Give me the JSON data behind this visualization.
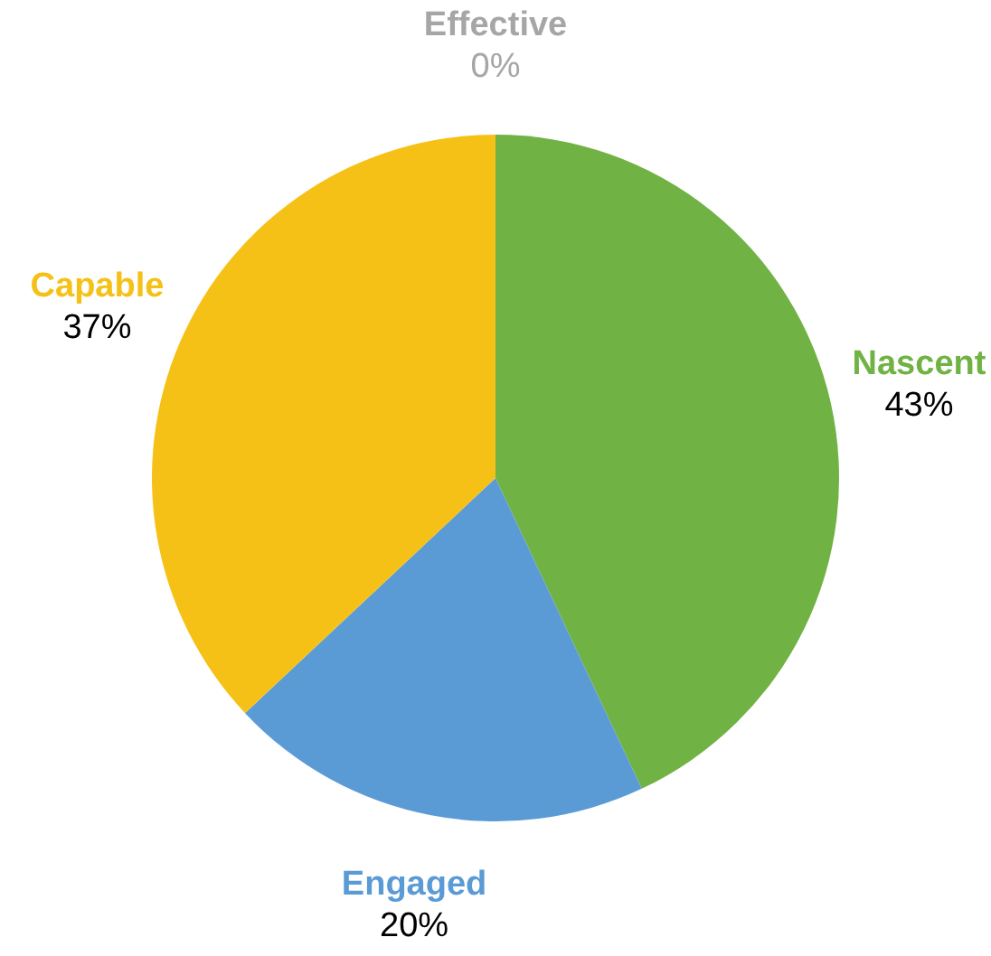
{
  "chart_data": {
    "type": "pie",
    "categories": [
      "Nascent",
      "Engaged",
      "Capable",
      "Effective"
    ],
    "values": [
      43,
      20,
      37,
      0
    ],
    "value_labels": [
      "43%",
      "20%",
      "37%",
      "0%"
    ],
    "colors": [
      "#70b244",
      "#5b9bd5",
      "#f6c117",
      "#a6a6a6"
    ]
  }
}
